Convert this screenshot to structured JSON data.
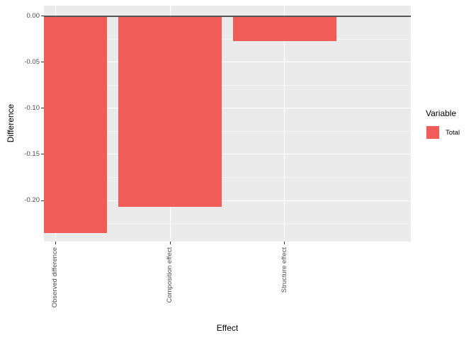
{
  "chart_data": {
    "type": "bar",
    "title": "",
    "categories": [
      "Observed difference",
      "Composition effect",
      "Structure effect"
    ],
    "values": [
      -0.235,
      -0.207,
      -0.027
    ],
    "series": [
      {
        "name": "Total",
        "values": [
          -0.235,
          -0.207,
          -0.027
        ]
      }
    ],
    "xlabel": "Effect",
    "ylabel": "Difference",
    "ylim": [
      0.0115,
      -0.2446
    ],
    "y_major_ticks": [
      0.0,
      -0.05,
      -0.1,
      -0.15,
      -0.2
    ],
    "y_tick_labels": [
      "0.00",
      "-0.05",
      "-0.10",
      "-0.15",
      "-0.20"
    ],
    "y_minor_ticks": [
      -0.025,
      -0.075,
      -0.125,
      -0.175,
      -0.225
    ],
    "zero_line_value": 0,
    "grid": "on",
    "legend": {
      "title": "Variable",
      "position": "right",
      "entries": [
        {
          "label": "Total",
          "color": "#F25C58"
        }
      ]
    },
    "colors": {
      "bar": "#F25C58",
      "panel_background": "#EBEBEB",
      "grid_major": "#FFFFFF",
      "grid_minor": "#FFFFFF",
      "zero_line": "#555555",
      "tick_text": "#4D4D4D",
      "axis_title_text": "#000000",
      "legend_key_background": "#F2F2F2"
    }
  }
}
